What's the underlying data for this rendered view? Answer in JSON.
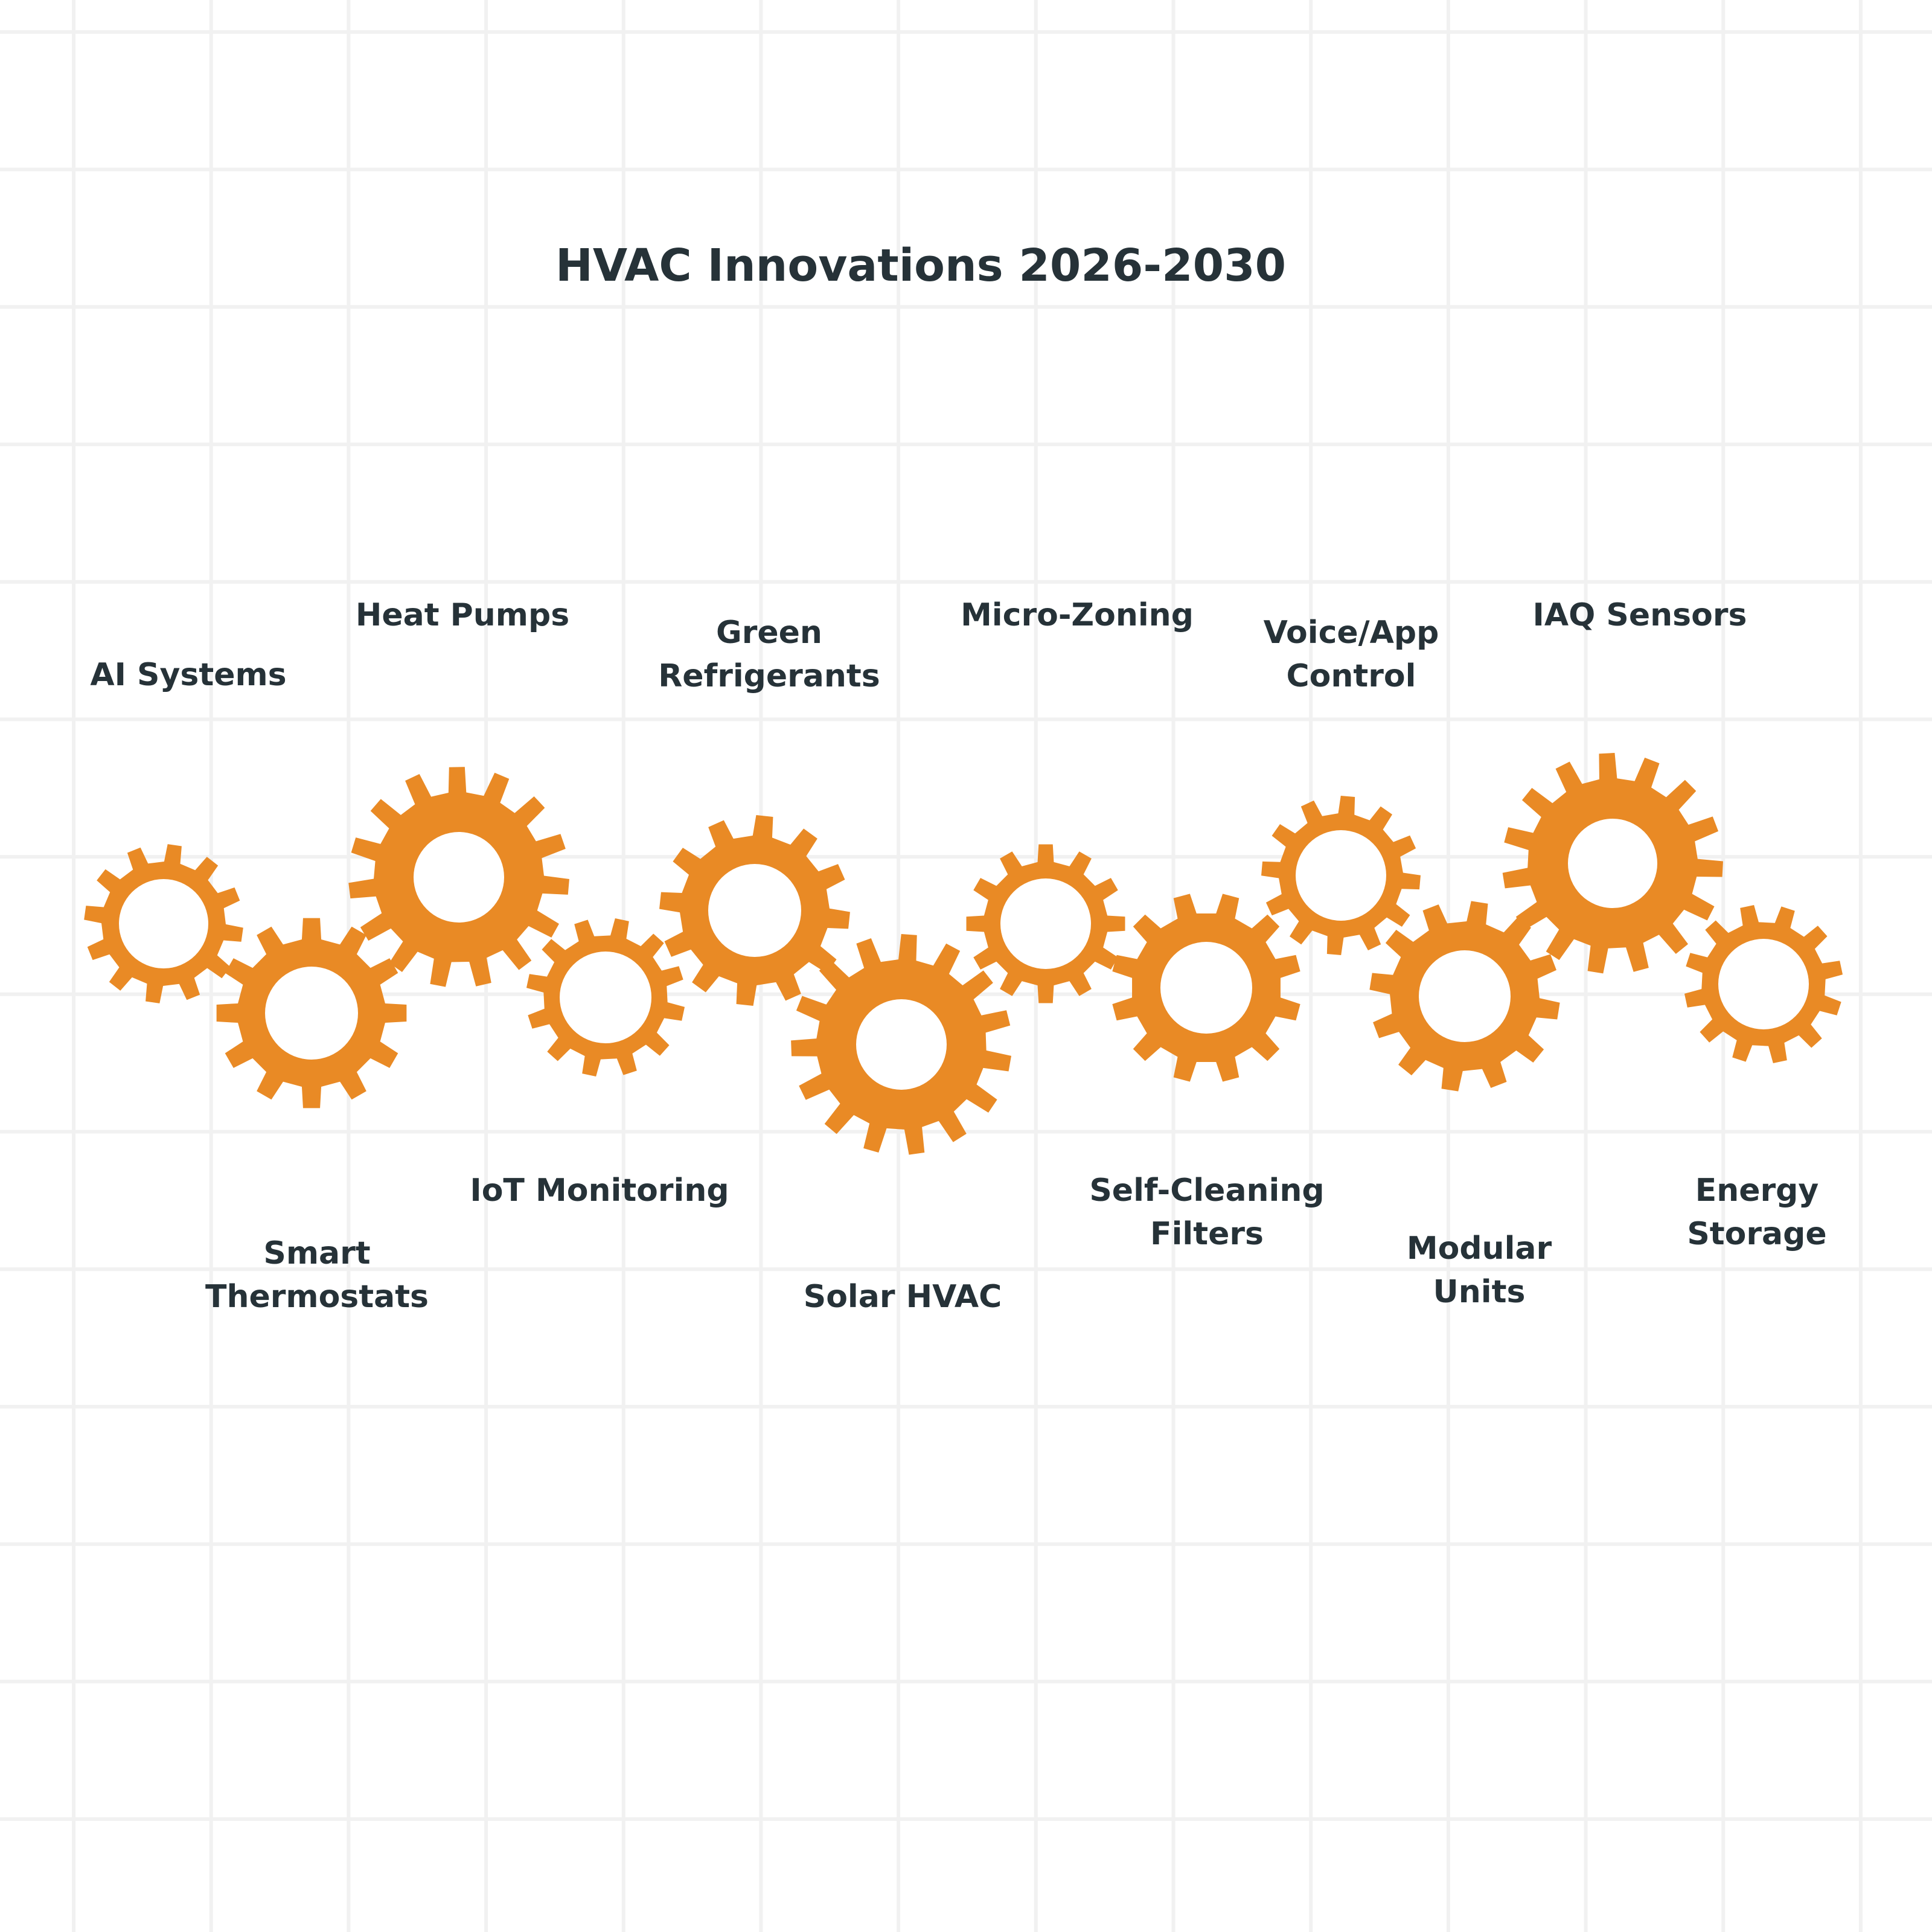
{
  "title": "HVAC Innovations 2026-2030",
  "gear_color": "#E98A25",
  "text_color": "#263238",
  "items": [
    {
      "label_lines": [
        "AI Systems"
      ]
    },
    {
      "label_lines": [
        "Smart",
        "Thermostats"
      ]
    },
    {
      "label_lines": [
        "Heat Pumps"
      ]
    },
    {
      "label_lines": [
        "IoT Monitoring"
      ]
    },
    {
      "label_lines": [
        "Green",
        "Refrigerants"
      ]
    },
    {
      "label_lines": [
        "Solar HVAC"
      ]
    },
    {
      "label_lines": [
        "Micro-Zoning"
      ]
    },
    {
      "label_lines": [
        "Self-Cleaning",
        "Filters"
      ]
    },
    {
      "label_lines": [
        "Voice/App",
        "Control"
      ]
    },
    {
      "label_lines": [
        "Modular",
        "Units"
      ]
    },
    {
      "label_lines": [
        "IAQ Sensors"
      ]
    },
    {
      "label_lines": [
        "Energy",
        "Storage"
      ]
    }
  ]
}
